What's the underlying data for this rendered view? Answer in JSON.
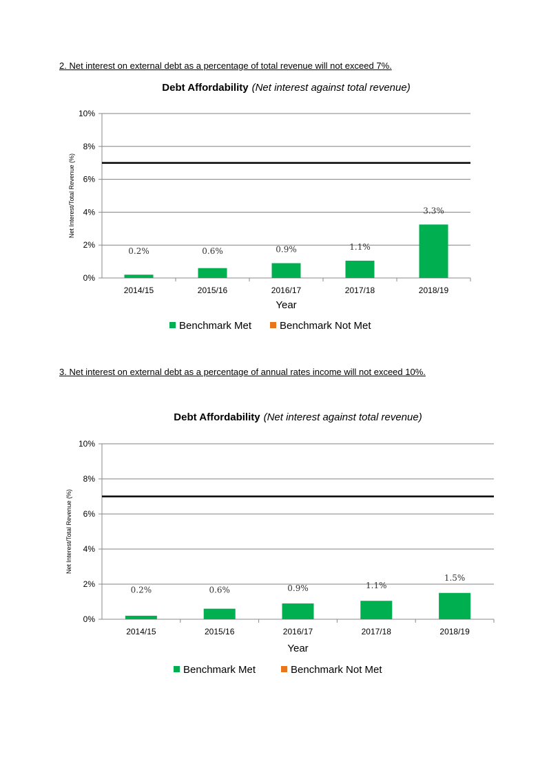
{
  "heading1": "2. Net interest on external debt as a percentage of total revenue will not exceed 7%.",
  "heading2": "3. Net interest on external debt as a percentage of annual rates income will not exceed 10%.",
  "colors": {
    "met": "#00b050",
    "not_met": "#e8761c",
    "benchmark_line": "#000000",
    "grid": "#808080"
  },
  "chart_data": [
    {
      "type": "bar",
      "title": "Debt Affordability",
      "subtitle": "(Net interest against total revenue)",
      "xlabel": "Year",
      "ylabel": "Net Interest/Total Revenue (%)",
      "categories": [
        "2014/15",
        "2015/16",
        "2016/17",
        "2017/18",
        "2018/19"
      ],
      "values": [
        0.2,
        0.6,
        0.9,
        1.05,
        3.25
      ],
      "data_labels": [
        "0.2%",
        "0.6%",
        "0.9%",
        "1.1%",
        "3.3%"
      ],
      "ylim": [
        0,
        10
      ],
      "yticks": [
        "0%",
        "2%",
        "4%",
        "6%",
        "8%",
        "10%"
      ],
      "benchmark": 7,
      "grid": true,
      "legend_position": "bottom",
      "legend": [
        "Benchmark Met",
        "Benchmark Not Met"
      ]
    },
    {
      "type": "bar",
      "title": "Debt Affordability",
      "subtitle": "(Net interest against total revenue)",
      "xlabel": "Year",
      "ylabel": "Net Interest/Total Revenue (%)",
      "categories": [
        "2014/15",
        "2015/16",
        "2016/17",
        "2017/18",
        "2018/19"
      ],
      "values": [
        0.2,
        0.6,
        0.9,
        1.05,
        1.5
      ],
      "data_labels": [
        "0.2%",
        "0.6%",
        "0.9%",
        "1.1%",
        "1.5%"
      ],
      "ylim": [
        0,
        10
      ],
      "yticks": [
        "0%",
        "2%",
        "4%",
        "6%",
        "8%",
        "10%"
      ],
      "benchmark": 7,
      "grid": true,
      "legend_position": "bottom",
      "legend": [
        "Benchmark Met",
        "Benchmark Not Met"
      ]
    }
  ]
}
